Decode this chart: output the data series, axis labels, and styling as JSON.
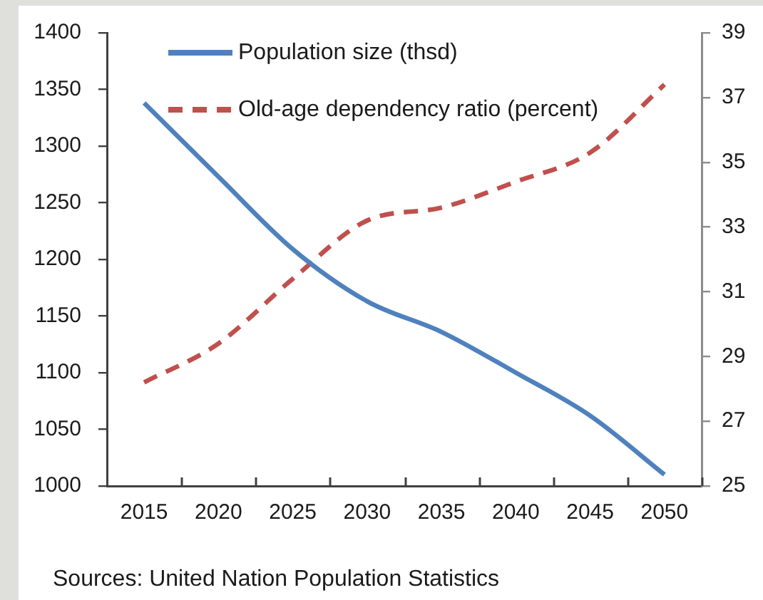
{
  "chart_data": {
    "type": "line",
    "categories": [
      "2015",
      "2020",
      "2025",
      "2030",
      "2035",
      "2040",
      "2045",
      "2050"
    ],
    "series": [
      {
        "name": "Population size (thsd)",
        "color": "#4f81bd",
        "line_style": "solid",
        "values": [
          1338,
          1273,
          1209,
          1163,
          1136,
          1100,
          1062,
          1010
        ]
      },
      {
        "name": "Old-age dependency ratio (percent)",
        "color": "#c0504d",
        "line_style": "dashed",
        "axis": "y2",
        "values": [
          28.2,
          29.4,
          31.4,
          33.2,
          33.6,
          34.4,
          35.3,
          37.4
        ]
      }
    ],
    "ylim": [
      1000,
      1400
    ],
    "yticks": [
      1000,
      1050,
      1100,
      1150,
      1200,
      1250,
      1300,
      1350,
      1400
    ],
    "y2lim": [
      25,
      39
    ],
    "y2ticks": [
      25,
      27,
      29,
      31,
      33,
      35,
      37,
      39
    ],
    "legend": "top left",
    "marker": "none",
    "annotations": [
      "Sources: United Nation Population Statistics"
    ]
  }
}
